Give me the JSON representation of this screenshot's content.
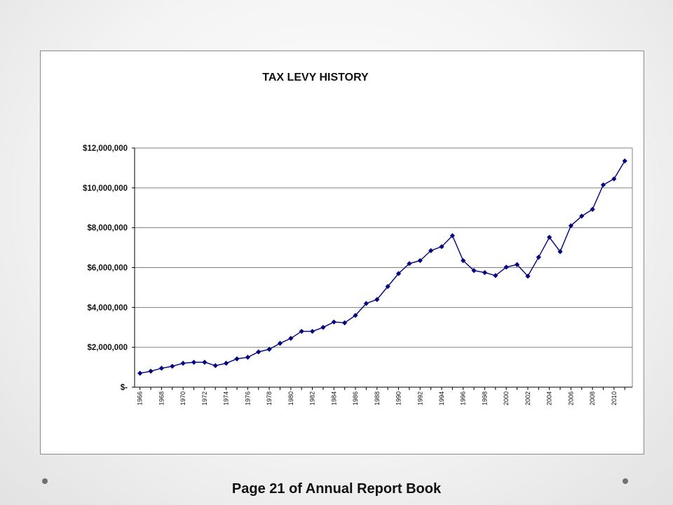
{
  "footer": {
    "caption": "Page 21 of Annual Report Book"
  },
  "colors": {
    "series": "#000080",
    "gridline": "#808080",
    "decor_dot": "#707070"
  },
  "chart_data": {
    "type": "line",
    "title": "TAX LEVY HISTORY",
    "xlabel": "",
    "ylabel": "",
    "ylim": [
      0,
      12000000
    ],
    "grid": true,
    "legend": "none",
    "y_tick_labels": [
      "$-",
      "$2,000,000",
      "$4,000,000",
      "$6,000,000",
      "$8,000,000",
      "$10,000,000",
      "$12,000,000"
    ],
    "y_tick_values": [
      0,
      2000000,
      4000000,
      6000000,
      8000000,
      10000000,
      12000000
    ],
    "x_tick_labels": [
      "1966",
      "1968",
      "1970",
      "1972",
      "1974",
      "1976",
      "1978",
      "1980",
      "1982",
      "1984",
      "1986",
      "1988",
      "1990",
      "1992",
      "1994",
      "1996",
      "1998",
      "2000",
      "2002",
      "2004",
      "2006",
      "2008",
      "2010"
    ],
    "x": [
      1966,
      1967,
      1968,
      1969,
      1970,
      1971,
      1972,
      1973,
      1974,
      1975,
      1976,
      1977,
      1978,
      1979,
      1980,
      1981,
      1982,
      1983,
      1984,
      1985,
      1986,
      1987,
      1988,
      1989,
      1990,
      1991,
      1992,
      1993,
      1994,
      1995,
      1996,
      1997,
      1998,
      1999,
      2000,
      2001,
      2002,
      2003,
      2004,
      2005,
      2006,
      2007,
      2008,
      2009,
      2010,
      2011
    ],
    "values": [
      700000,
      800000,
      950000,
      1050000,
      1200000,
      1250000,
      1250000,
      1080000,
      1200000,
      1420000,
      1500000,
      1770000,
      1900000,
      2200000,
      2450000,
      2800000,
      2800000,
      3000000,
      3270000,
      3230000,
      3600000,
      4200000,
      4400000,
      5050000,
      5700000,
      6200000,
      6350000,
      6850000,
      7050000,
      7600000,
      6350000,
      5850000,
      5750000,
      5600000,
      6020000,
      6150000,
      5570000,
      6520000,
      7520000,
      6800000,
      8100000,
      8580000,
      8920000,
      10150000,
      10450000,
      11350000
    ]
  }
}
